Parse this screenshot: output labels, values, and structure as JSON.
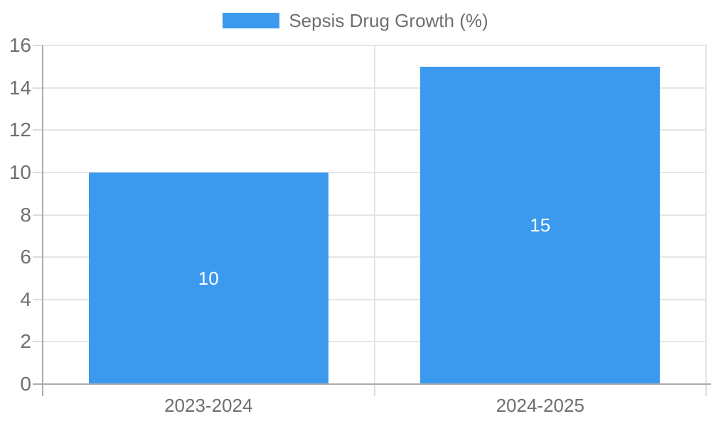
{
  "colors": {
    "bar": "#3B9AEE",
    "grid": "#E5E5E5",
    "tick": "#DCDCDC",
    "axis": "#ACACAC",
    "text": "#6F6F6F",
    "bar_label": "#FFFFFF",
    "background": "#FFFFFF"
  },
  "chart_data": {
    "type": "bar",
    "title": "",
    "legend": [
      "Sepsis Drug Growth (%)"
    ],
    "legend_position": "top",
    "categories": [
      "2023-2024",
      "2024-2025"
    ],
    "series": [
      {
        "name": "Sepsis Drug Growth (%)",
        "values": [
          10,
          15
        ]
      }
    ],
    "values": [
      10,
      15
    ],
    "value_labels": [
      "10",
      "15"
    ],
    "value_label_position": "center",
    "xlabel": "",
    "ylabel": "",
    "ylim": [
      0,
      16
    ],
    "yticks": [
      0,
      2,
      4,
      6,
      8,
      10,
      12,
      14,
      16
    ],
    "grid": true,
    "gridlines": "horizontal-and-category-boundaries"
  }
}
